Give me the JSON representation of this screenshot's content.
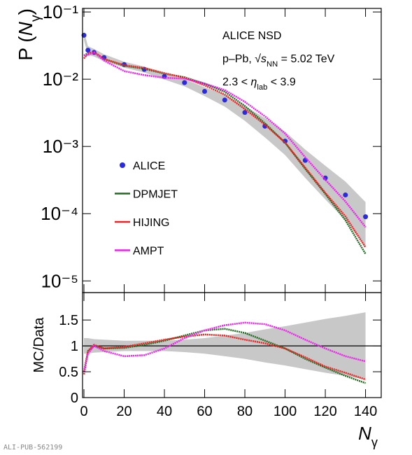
{
  "chart_data": [
    {
      "type": "line",
      "log_y": true,
      "ylabel": [
        {
          "text": "P ("
        },
        {
          "text": "N",
          "italic": true
        },
        {
          "text": "γ",
          "sub": true
        },
        {
          "text": ")"
        }
      ],
      "annotations": [
        [
          {
            "text": "ALICE NSD"
          }
        ],
        [
          {
            "text": "p–Pb, "
          },
          {
            "text": "√"
          },
          {
            "text": "s",
            "italic": true
          },
          {
            "text": "NN",
            "sub": true
          },
          {
            "text": " = 5.02 TeV"
          }
        ],
        [
          {
            "text": "2.3 < "
          },
          {
            "text": "η",
            "italic": true
          },
          {
            "text": "lab",
            "sub": true
          },
          {
            "text": " < 3.9"
          }
        ]
      ],
      "xlim": [
        -0.7,
        147.8
      ],
      "ylim": [
        6.7e-06,
        0.113
      ],
      "xticks": [
        0,
        20,
        40,
        60,
        80,
        100,
        120,
        140
      ],
      "yticks": [
        {
          "value": 0.1,
          "label": "10⁻¹"
        },
        {
          "value": 0.01,
          "label": "10⁻²"
        },
        {
          "value": 0.001,
          "label": "10⁻³"
        },
        {
          "value": 0.0001,
          "label": "10⁻⁴"
        },
        {
          "value": 1e-05,
          "label": "10⁻⁵"
        }
      ],
      "x": [
        0,
        2,
        5,
        10,
        20,
        30,
        40,
        50,
        60,
        70,
        80,
        90,
        100,
        110,
        120,
        130,
        140
      ],
      "series": [
        {
          "name": "ALICE",
          "color": "#2a2ae0",
          "marker": "dot",
          "values": [
            0.045,
            0.027,
            0.025,
            0.021,
            0.0165,
            0.014,
            0.011,
            0.0089,
            0.0066,
            0.0049,
            0.0032,
            0.002,
            0.0012,
            0.00062,
            0.00034,
            0.00019,
            9e-05
          ]
        },
        {
          "name": "DPMJET",
          "color": "#1f6a1f",
          "marker": "line",
          "values": [
            0.0225,
            0.0243,
            0.025,
            0.02,
            0.0158,
            0.0143,
            0.0121,
            0.0107,
            0.0086,
            0.0065,
            0.004,
            0.0022,
            0.00114,
            0.000465,
            0.000197,
            7.98e-05,
            2.52e-05
          ]
        },
        {
          "name": "HIJING",
          "color": "#ee2222",
          "marker": "line",
          "values": [
            0.0203,
            0.0243,
            0.0255,
            0.02,
            0.0162,
            0.0147,
            0.0123,
            0.0105,
            0.0081,
            0.0059,
            0.0036,
            0.0021,
            0.00114,
            0.000484,
            0.000204,
            9.12e-05,
            3.15e-05
          ]
        },
        {
          "name": "AMPT",
          "color": "#ee22ee",
          "marker": "line",
          "values": [
            0.0225,
            0.023,
            0.025,
            0.0189,
            0.0132,
            0.0115,
            0.0105,
            0.0102,
            0.0086,
            0.0069,
            0.0046,
            0.0028,
            0.00156,
            0.00069,
            0.00032,
            0.000152,
            6.3e-05
          ]
        }
      ],
      "band_color": "#c8c8c8"
    },
    {
      "type": "line",
      "log_y": false,
      "ylabel": [
        {
          "text": "MC/Data"
        }
      ],
      "xlabel": [
        {
          "text": "N",
          "italic": true
        },
        {
          "text": "γ",
          "sub": true
        }
      ],
      "xlim": [
        -0.7,
        147.8
      ],
      "ylim": [
        0,
        2.03
      ],
      "xticks": [
        0,
        20,
        40,
        60,
        80,
        100,
        120,
        140
      ],
      "yticks": [
        0,
        0.5,
        1,
        1.5
      ],
      "ref_line": 1,
      "x": [
        0,
        2,
        5,
        10,
        20,
        30,
        40,
        50,
        60,
        70,
        80,
        90,
        100,
        110,
        120,
        130,
        140
      ],
      "band": {
        "color": "#c8c8c8",
        "lower": [
          0.85,
          0.85,
          0.87,
          0.88,
          0.9,
          0.9,
          0.9,
          0.88,
          0.85,
          0.8,
          0.75,
          0.68,
          0.62,
          0.55,
          0.48,
          0.42,
          0.35
        ],
        "upper": [
          1.15,
          1.15,
          1.13,
          1.12,
          1.1,
          1.1,
          1.1,
          1.12,
          1.15,
          1.2,
          1.25,
          1.32,
          1.38,
          1.45,
          1.52,
          1.58,
          1.65
        ]
      },
      "series": [
        {
          "color": "#1f6a1f",
          "values": [
            0.5,
            0.9,
            1.0,
            0.95,
            0.96,
            1.02,
            1.1,
            1.2,
            1.3,
            1.33,
            1.25,
            1.1,
            0.95,
            0.75,
            0.58,
            0.42,
            0.28
          ]
        },
        {
          "color": "#ee2222",
          "values": [
            0.45,
            0.9,
            1.02,
            0.95,
            0.98,
            1.05,
            1.12,
            1.18,
            1.22,
            1.2,
            1.12,
            1.05,
            0.95,
            0.78,
            0.6,
            0.48,
            0.35
          ]
        },
        {
          "color": "#ee22ee",
          "values": [
            0.5,
            0.85,
            1.0,
            0.9,
            0.8,
            0.82,
            0.95,
            1.15,
            1.3,
            1.4,
            1.45,
            1.42,
            1.3,
            1.12,
            0.95,
            0.8,
            0.7
          ]
        }
      ]
    },
    "ALI-PUB-562199"
  ]
}
